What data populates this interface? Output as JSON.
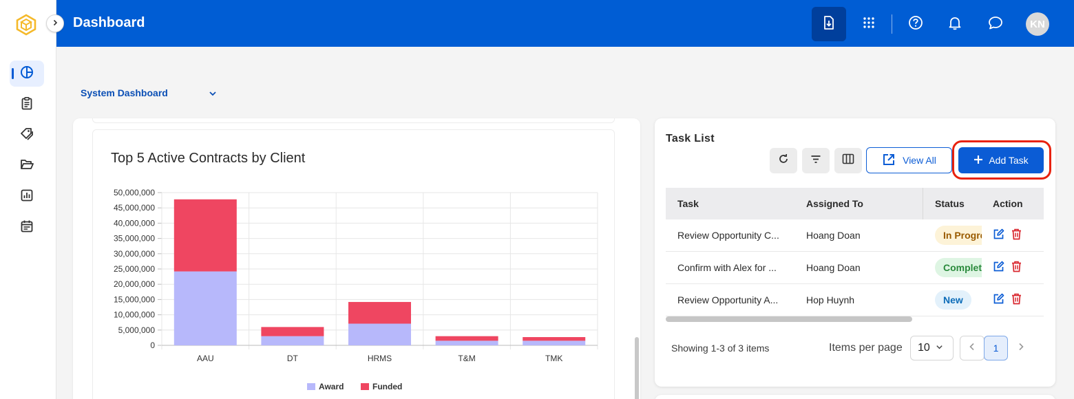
{
  "header": {
    "title": "Dashboard",
    "avatar_initials": "KN"
  },
  "dashboard_selector": {
    "selected": "System Dashboard"
  },
  "sidebar": {
    "items": [
      {
        "name": "dashboard",
        "icon": "pie-chart-icon",
        "active": true
      },
      {
        "name": "contracts",
        "icon": "clipboard-icon",
        "active": false
      },
      {
        "name": "tags",
        "icon": "tags-icon",
        "active": false
      },
      {
        "name": "folders",
        "icon": "folder-open-icon",
        "active": false
      },
      {
        "name": "reports",
        "icon": "bar-chart-icon",
        "active": false
      },
      {
        "name": "calendar",
        "icon": "calendar-icon",
        "active": false
      }
    ]
  },
  "colors": {
    "header": "#005dd4",
    "award": "#b7b8fb",
    "funded": "#ef4661",
    "primary": "#0b5cd5",
    "highlight": "#e8220e"
  },
  "chart_data": {
    "type": "bar",
    "stacked": true,
    "title": "Top 5 Active Contracts by Client",
    "categories": [
      "AAU",
      "DT",
      "HRMS",
      "T&M",
      "TMK"
    ],
    "series": [
      {
        "name": "Award",
        "color": "#b7b8fb",
        "values": [
          24200000,
          3000000,
          7100000,
          1500000,
          1500000
        ]
      },
      {
        "name": "Funded",
        "color": "#ef4661",
        "values": [
          23600000,
          3000000,
          7100000,
          1500000,
          1200000
        ]
      }
    ],
    "ylim": [
      0,
      50000000
    ],
    "yticks": [
      0,
      5000000,
      10000000,
      15000000,
      20000000,
      25000000,
      30000000,
      35000000,
      40000000,
      45000000,
      50000000
    ],
    "ytick_labels": [
      "0",
      "5,000,000",
      "10,000,000",
      "15,000,000",
      "20,000,000",
      "25,000,000",
      "30,000,000",
      "35,000,000",
      "40,000,000",
      "45,000,000",
      "50,000,000"
    ],
    "grid": true,
    "legend": "bottom"
  },
  "task_list": {
    "title": "Task List",
    "view_all_label": "View All",
    "add_task_label": "Add Task",
    "columns": {
      "task": "Task",
      "assigned": "Assigned To",
      "status": "Status",
      "action": "Action"
    },
    "rows": [
      {
        "task": "Review Opportunity C...",
        "assigned": "Hoang Doan",
        "status": "In Progress",
        "status_type": "progress"
      },
      {
        "task": "Confirm with Alex for ...",
        "assigned": "Hoang Doan",
        "status": "Complete",
        "status_type": "complete"
      },
      {
        "task": "Review Opportunity A...",
        "assigned": "Hop Huynh",
        "status": "New",
        "status_type": "new"
      }
    ],
    "footer": {
      "showing": "Showing 1-3 of 3 items",
      "items_per_page_label": "Items per page",
      "items_per_page": "10",
      "current_page": "1"
    }
  }
}
